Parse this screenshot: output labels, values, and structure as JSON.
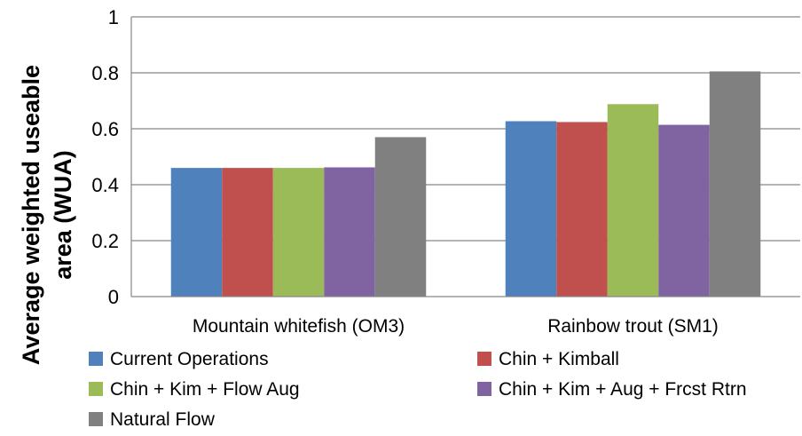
{
  "chart_data": {
    "type": "bar",
    "title": "",
    "xlabel": "",
    "ylabel_lines": [
      "Average weighted useable",
      "area (WUA)"
    ],
    "ylim": [
      0,
      1
    ],
    "yticks": [
      "0",
      "0.2",
      "0.4",
      "0.6",
      "0.8",
      "1"
    ],
    "grid": true,
    "legend_position": "bottom",
    "categories": [
      "Mountain whitefish (OM3)",
      "Rainbow trout (SM1)"
    ],
    "series": [
      {
        "name": "Current Operations",
        "color": "#4F81BD",
        "values": [
          0.46,
          0.627
        ]
      },
      {
        "name": "Chin + Kimball",
        "color": "#C0504D",
        "values": [
          0.46,
          0.624
        ]
      },
      {
        "name": "Chin + Kim + Flow Aug",
        "color": "#9BBB59",
        "values": [
          0.46,
          0.688
        ]
      },
      {
        "name": "Chin  + Kim + Aug + Frcst Rtrn",
        "color": "#8064A2",
        "values": [
          0.462,
          0.614
        ]
      },
      {
        "name": "Natural Flow",
        "color": "#808080",
        "values": [
          0.57,
          0.805
        ]
      }
    ]
  }
}
